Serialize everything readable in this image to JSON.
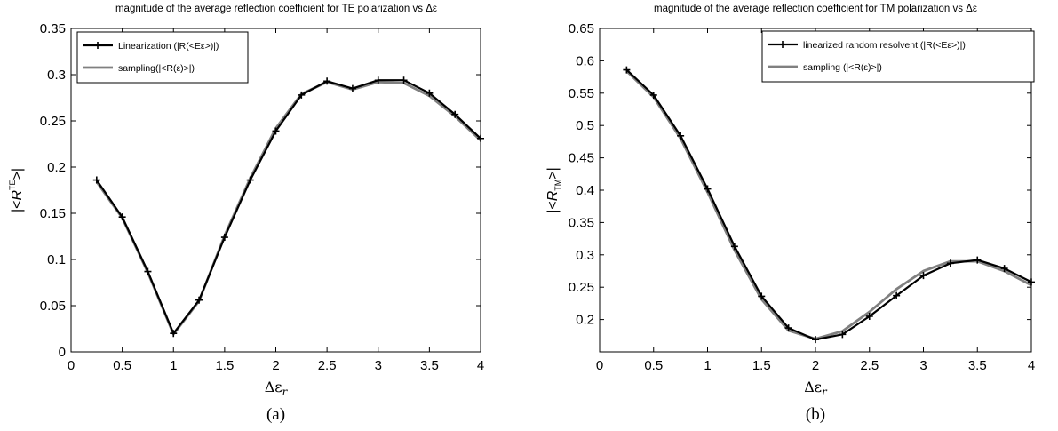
{
  "figure": {
    "panel_labels": [
      "(a)",
      "(b)"
    ]
  },
  "chart_data": [
    {
      "type": "line",
      "title": "magnitude of the average reflection coefficient for TE polarization vs Δε",
      "xlabel": "Δεr",
      "ylabel": "|<R^TE>|",
      "xlim": [
        0,
        4
      ],
      "ylim": [
        0,
        0.35
      ],
      "xticks": [
        "0",
        "0.5",
        "1",
        "1.5",
        "2",
        "2.5",
        "3",
        "3.5",
        "4"
      ],
      "yticks": [
        "0",
        "0.05",
        "0.1",
        "0.15",
        "0.2",
        "0.25",
        "0.3",
        "0.35"
      ],
      "legend_position": "top-left",
      "series": [
        {
          "name": "Linearization (|R(<Eε>)|)",
          "color": "#000000",
          "marker": "plus",
          "x": [
            0.25,
            0.5,
            0.75,
            1.0,
            1.25,
            1.5,
            1.75,
            2.0,
            2.25,
            2.5,
            2.75,
            3.0,
            3.25,
            3.5,
            3.75,
            4.0
          ],
          "values": [
            0.186,
            0.146,
            0.087,
            0.02,
            0.056,
            0.124,
            0.186,
            0.239,
            0.278,
            0.293,
            0.285,
            0.294,
            0.294,
            0.28,
            0.257,
            0.231
          ]
        },
        {
          "name": "sampling(|<R(ε)>|)",
          "color": "#808080",
          "marker": "none",
          "x": [
            0.25,
            0.5,
            0.75,
            1.0,
            1.25,
            1.5,
            1.75,
            2.0,
            2.25,
            2.5,
            2.75,
            3.0,
            3.25,
            3.5,
            3.75,
            4.0
          ],
          "values": [
            0.184,
            0.145,
            0.086,
            0.019,
            0.055,
            0.126,
            0.188,
            0.242,
            0.279,
            0.292,
            0.284,
            0.292,
            0.291,
            0.277,
            0.255,
            0.229
          ]
        }
      ]
    },
    {
      "type": "line",
      "title": "magnitude of the average reflection coefficient for TM polarization vs Δε",
      "xlabel": "Δεr",
      "ylabel": "|<R_TM>|",
      "xlim": [
        0,
        4
      ],
      "ylim": [
        0.15,
        0.65
      ],
      "xticks": [
        "0",
        "0.5",
        "1",
        "1.5",
        "2",
        "2.5",
        "3",
        "3.5",
        "4"
      ],
      "yticks": [
        "0.2",
        "0.25",
        "0.3",
        "0.35",
        "0.4",
        "0.45",
        "0.5",
        "0.55",
        "0.6",
        "0.65"
      ],
      "legend_position": "top-right",
      "series": [
        {
          "name": "linearized random resolvent (|R(<Eε>)|)",
          "color": "#000000",
          "marker": "plus",
          "x": [
            0.25,
            0.5,
            0.75,
            1.0,
            1.25,
            1.5,
            1.75,
            2.0,
            2.25,
            2.5,
            2.75,
            3.0,
            3.25,
            3.5,
            3.75,
            4.0
          ],
          "values": [
            0.586,
            0.547,
            0.484,
            0.402,
            0.313,
            0.236,
            0.187,
            0.169,
            0.177,
            0.205,
            0.237,
            0.268,
            0.287,
            0.292,
            0.279,
            0.258
          ]
        },
        {
          "name": "sampling (|<R(ε)>|)",
          "color": "#808080",
          "marker": "none",
          "x": [
            0.25,
            0.5,
            0.75,
            1.0,
            1.25,
            1.5,
            1.75,
            2.0,
            2.25,
            2.5,
            2.75,
            3.0,
            3.25,
            3.5,
            3.75,
            4.0
          ],
          "values": [
            0.584,
            0.544,
            0.48,
            0.397,
            0.307,
            0.231,
            0.183,
            0.17,
            0.182,
            0.212,
            0.247,
            0.275,
            0.29,
            0.29,
            0.275,
            0.253
          ]
        }
      ]
    }
  ]
}
